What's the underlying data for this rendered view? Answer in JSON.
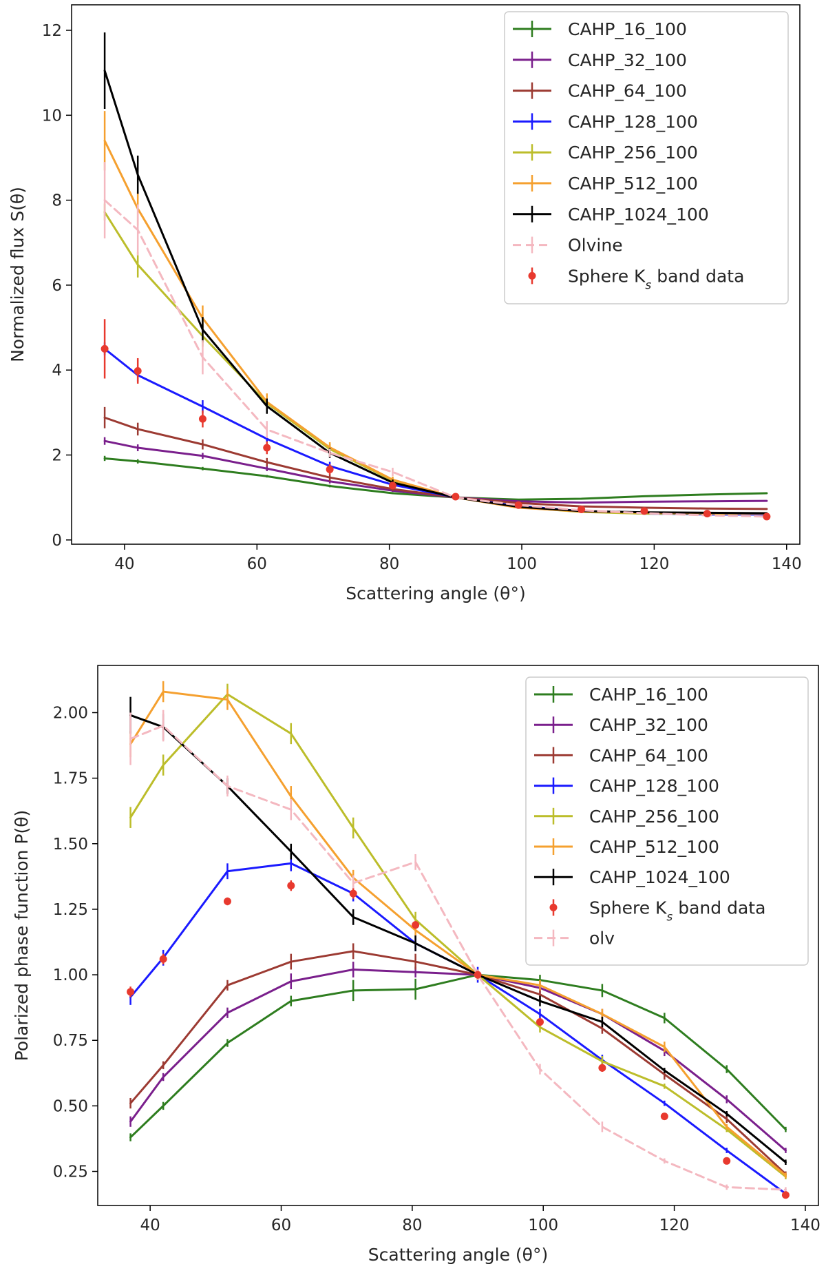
{
  "chart_data": [
    {
      "type": "line",
      "xlabel": "Scattering angle (θ°)",
      "ylabel": "Normalized flux S(θ)",
      "xlim": [
        32,
        142
      ],
      "ylim": [
        -0.1,
        12.6
      ],
      "xticks": [
        40,
        60,
        80,
        100,
        120,
        140
      ],
      "xtick_labels": [
        "40",
        "60",
        "80",
        "100",
        "120",
        "140"
      ],
      "yticks": [
        0,
        2,
        4,
        6,
        8,
        10,
        12
      ],
      "ytick_labels": [
        "0",
        "2",
        "4",
        "6",
        "8",
        "10",
        "12"
      ],
      "legend_position": "top-right",
      "x": [
        37,
        42,
        51.8,
        61.5,
        71,
        80.5,
        90,
        99.5,
        109,
        118.5,
        128,
        137
      ],
      "series": [
        {
          "name": "CAHP_16_100",
          "color": "#2e7d1f",
          "style": "solid",
          "values": [
            1.92,
            1.85,
            1.68,
            1.5,
            1.27,
            1.1,
            1.0,
            0.95,
            0.97,
            1.03,
            1.07,
            1.1
          ],
          "errors": [
            0.06,
            0.05,
            0.04,
            0.03,
            0.03,
            0.02,
            0,
            0,
            0,
            0,
            0,
            0
          ]
        },
        {
          "name": "CAHP_32_100",
          "color": "#7a1f8c",
          "style": "solid",
          "values": [
            2.33,
            2.17,
            1.98,
            1.68,
            1.38,
            1.16,
            1.0,
            0.91,
            0.88,
            0.9,
            0.91,
            0.92
          ],
          "errors": [
            0.09,
            0.08,
            0.07,
            0.06,
            0.05,
            0.03,
            0,
            0,
            0,
            0,
            0,
            0
          ]
        },
        {
          "name": "CAHP_64_100",
          "color": "#9c3a32",
          "style": "solid",
          "values": [
            2.88,
            2.61,
            2.25,
            1.83,
            1.47,
            1.2,
            1.0,
            0.87,
            0.79,
            0.76,
            0.74,
            0.73
          ],
          "errors": [
            0.25,
            0.15,
            0.12,
            0.1,
            0.08,
            0.05,
            0,
            0,
            0,
            0,
            0,
            0
          ]
        },
        {
          "name": "CAHP_128_100",
          "color": "#1a1aff",
          "style": "solid",
          "values": [
            4.5,
            3.88,
            3.14,
            2.38,
            1.74,
            1.3,
            1.0,
            0.8,
            0.68,
            0.62,
            0.6,
            0.6
          ],
          "errors": [
            0.15,
            0.15,
            0.15,
            0.12,
            0.1,
            0.06,
            0,
            0,
            0,
            0,
            0,
            0
          ]
        },
        {
          "name": "CAHP_256_100",
          "color": "#bcbd2a",
          "style": "solid",
          "values": [
            7.72,
            6.48,
            4.8,
            3.22,
            2.14,
            1.4,
            1.0,
            0.77,
            0.66,
            0.62,
            0.62,
            0.62
          ],
          "errors": [
            0.2,
            0.3,
            0.25,
            0.18,
            0.12,
            0.07,
            0,
            0,
            0,
            0,
            0,
            0
          ]
        },
        {
          "name": "CAHP_512_100",
          "color": "#f5a02f",
          "style": "solid",
          "values": [
            9.4,
            7.8,
            5.22,
            3.25,
            2.18,
            1.42,
            1.0,
            0.76,
            0.67,
            0.64,
            0.63,
            0.62
          ],
          "errors": [
            0.7,
            0.4,
            0.3,
            0.2,
            0.12,
            0.07,
            0,
            0,
            0,
            0,
            0,
            0
          ]
        },
        {
          "name": "CAHP_1024_100",
          "color": "#000000",
          "style": "solid",
          "values": [
            11.05,
            8.6,
            4.95,
            3.15,
            2.05,
            1.35,
            1.0,
            0.78,
            0.68,
            0.65,
            0.64,
            0.63
          ],
          "errors": [
            0.9,
            0.45,
            0.3,
            0.18,
            0.12,
            0.07,
            0,
            0,
            0,
            0,
            0,
            0
          ]
        },
        {
          "name": "Olvine",
          "color": "#f4b8c0",
          "style": "dashed",
          "values": [
            8.0,
            7.3,
            4.3,
            2.6,
            2.05,
            1.6,
            1.0,
            0.82,
            0.7,
            0.63,
            0.58,
            0.55
          ],
          "errors": [
            0.9,
            0.6,
            0.4,
            0.2,
            0.1,
            0.1,
            0,
            0,
            0,
            0,
            0,
            0
          ]
        }
      ],
      "points": {
        "name": "Sphere K_s band data",
        "color": "#e8392e",
        "values": [
          4.5,
          3.98,
          2.85,
          2.17,
          1.66,
          1.28,
          1.02,
          0.82,
          0.72,
          0.68,
          0.62,
          0.55
        ],
        "errors": [
          0.7,
          0.3,
          0.2,
          0.15,
          0.12,
          0.08,
          0.05,
          0.05,
          0.04,
          0.04,
          0.03,
          0.03
        ]
      }
    },
    {
      "type": "line",
      "xlabel": "Scattering angle (θ°)",
      "ylabel": "Polarized phase function P(θ)",
      "xlim": [
        32,
        142
      ],
      "ylim": [
        0.12,
        2.18
      ],
      "xticks": [
        40,
        60,
        80,
        100,
        120,
        140
      ],
      "xtick_labels": [
        "40",
        "60",
        "80",
        "100",
        "120",
        "140"
      ],
      "yticks": [
        0.25,
        0.5,
        0.75,
        1.0,
        1.25,
        1.5,
        1.75,
        2.0
      ],
      "ytick_labels": [
        "0.25",
        "0.50",
        "0.75",
        "1.00",
        "1.25",
        "1.50",
        "1.75",
        "2.00"
      ],
      "legend_position": "top-right",
      "x": [
        37,
        42,
        51.8,
        61.5,
        71,
        80.5,
        90,
        99.5,
        109,
        118.5,
        128,
        137
      ],
      "series": [
        {
          "name": "CAHP_16_100",
          "color": "#2e7d1f",
          "style": "solid",
          "values": [
            0.38,
            0.5,
            0.74,
            0.9,
            0.94,
            0.945,
            1.0,
            0.98,
            0.94,
            0.835,
            0.64,
            0.41
          ],
          "errors": [
            0.015,
            0.015,
            0.015,
            0.02,
            0.04,
            0.04,
            0.01,
            0.02,
            0.025,
            0.02,
            0.015,
            0.01
          ]
        },
        {
          "name": "CAHP_32_100",
          "color": "#7a1f8c",
          "style": "solid",
          "values": [
            0.44,
            0.61,
            0.855,
            0.975,
            1.02,
            1.01,
            1.0,
            0.95,
            0.85,
            0.71,
            0.525,
            0.33
          ],
          "errors": [
            0.02,
            0.015,
            0.02,
            0.03,
            0.03,
            0.02,
            0.01,
            0.02,
            0.02,
            0.02,
            0.015,
            0.01
          ]
        },
        {
          "name": "CAHP_64_100",
          "color": "#9c3a32",
          "style": "solid",
          "values": [
            0.51,
            0.655,
            0.96,
            1.05,
            1.09,
            1.05,
            1.0,
            0.925,
            0.795,
            0.62,
            0.45,
            0.24
          ],
          "errors": [
            0.02,
            0.015,
            0.02,
            0.03,
            0.03,
            0.03,
            0.01,
            0.02,
            0.02,
            0.02,
            0.015,
            0.01
          ]
        },
        {
          "name": "CAHP_128_100",
          "color": "#1a1aff",
          "style": "solid",
          "values": [
            0.915,
            1.065,
            1.395,
            1.425,
            1.31,
            1.12,
            1.0,
            0.85,
            0.675,
            0.51,
            0.33,
            0.165
          ],
          "errors": [
            0.03,
            0.03,
            0.03,
            0.03,
            0.03,
            0.03,
            0.03,
            0.02,
            0.02,
            0.01,
            0.01,
            0.01
          ]
        },
        {
          "name": "CAHP_256_100",
          "color": "#bcbd2a",
          "style": "solid",
          "values": [
            1.6,
            1.8,
            2.07,
            1.92,
            1.56,
            1.21,
            1.0,
            0.8,
            0.67,
            0.575,
            0.41,
            0.23
          ],
          "errors": [
            0.04,
            0.04,
            0.04,
            0.04,
            0.04,
            0.03,
            0.02,
            0.02,
            0.02,
            0.01,
            0.01,
            0.01
          ]
        },
        {
          "name": "CAHP_512_100",
          "color": "#f5a02f",
          "style": "solid",
          "values": [
            1.88,
            2.08,
            2.05,
            1.68,
            1.37,
            1.17,
            1.0,
            0.96,
            0.85,
            0.725,
            0.42,
            0.235
          ],
          "errors": [
            0.05,
            0.04,
            0.04,
            0.04,
            0.03,
            0.03,
            0.02,
            0.02,
            0.02,
            0.02,
            0.01,
            0.01
          ]
        },
        {
          "name": "CAHP_1024_100",
          "color": "#000000",
          "style": "solid",
          "values": [
            1.99,
            1.945,
            1.72,
            1.47,
            1.22,
            1.12,
            1.0,
            0.9,
            0.82,
            0.635,
            0.47,
            0.285
          ],
          "errors": [
            0.07,
            0.05,
            0.03,
            0.03,
            0.03,
            0.03,
            0.02,
            0.02,
            0.02,
            0.01,
            0.01,
            0.01
          ]
        },
        {
          "name": "olv",
          "color": "#f4b8c0",
          "style": "dashed",
          "values": [
            1.9,
            1.95,
            1.72,
            1.63,
            1.35,
            1.43,
            1.0,
            0.64,
            0.42,
            0.29,
            0.19,
            0.18
          ],
          "errors": [
            0.1,
            0.06,
            0.04,
            0.04,
            0.03,
            0.03,
            0.02,
            0.02,
            0.02,
            0.01,
            0.01,
            0.01
          ]
        }
      ],
      "points": {
        "name": "Sphere K_s band data",
        "color": "#e8392e",
        "values": [
          0.935,
          1.06,
          1.28,
          1.34,
          1.31,
          1.19,
          1.0,
          0.82,
          0.645,
          0.46,
          0.29,
          0.16
        ],
        "errors": [
          0.02,
          0.02,
          0.015,
          0.02,
          0.02,
          0.015,
          0.015,
          0.015,
          0.015,
          0.01,
          0.01,
          0.01
        ]
      }
    }
  ]
}
